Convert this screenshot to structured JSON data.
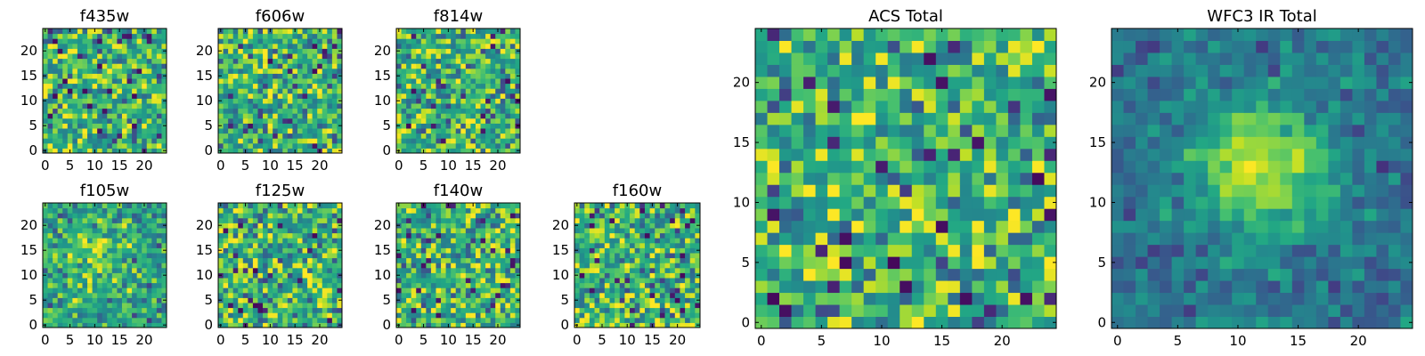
{
  "chart_data": [
    {
      "type": "heatmap",
      "title": "f435w",
      "xticks": [
        0,
        5,
        10,
        15,
        20
      ],
      "yticks": [
        0,
        5,
        10,
        15,
        20
      ],
      "grid_size": 25,
      "xlim": [
        -0.5,
        24.5
      ],
      "ylim": [
        -0.5,
        24.5
      ],
      "colormap": "viridis",
      "pattern": "noise",
      "values": []
    },
    {
      "type": "heatmap",
      "title": "f606w",
      "xticks": [
        0,
        5,
        10,
        15,
        20
      ],
      "yticks": [
        0,
        5,
        10,
        15,
        20
      ],
      "grid_size": 25,
      "xlim": [
        -0.5,
        24.5
      ],
      "ylim": [
        -0.5,
        24.5
      ],
      "colormap": "viridis",
      "pattern": "noise",
      "values": []
    },
    {
      "type": "heatmap",
      "title": "f814w",
      "xticks": [
        0,
        5,
        10,
        15,
        20
      ],
      "yticks": [
        0,
        5,
        10,
        15,
        20
      ],
      "grid_size": 25,
      "xlim": [
        -0.5,
        24.5
      ],
      "ylim": [
        -0.5,
        24.5
      ],
      "colormap": "viridis",
      "pattern": "noise",
      "values": []
    },
    {
      "type": "heatmap",
      "title": "f105w",
      "xticks": [
        0,
        5,
        10,
        15,
        20
      ],
      "yticks": [
        0,
        5,
        10,
        15,
        20
      ],
      "grid_size": 25,
      "xlim": [
        -0.5,
        24.5
      ],
      "ylim": [
        -0.5,
        24.5
      ],
      "colormap": "viridis",
      "pattern": "faint-source",
      "values": []
    },
    {
      "type": "heatmap",
      "title": "f125w",
      "xticks": [
        0,
        5,
        10,
        15,
        20
      ],
      "yticks": [
        0,
        5,
        10,
        15,
        20
      ],
      "grid_size": 25,
      "xlim": [
        -0.5,
        24.5
      ],
      "ylim": [
        -0.5,
        24.5
      ],
      "colormap": "viridis",
      "pattern": "noise",
      "values": []
    },
    {
      "type": "heatmap",
      "title": "f140w",
      "xticks": [
        0,
        5,
        10,
        15,
        20
      ],
      "yticks": [
        0,
        5,
        10,
        15,
        20
      ],
      "grid_size": 25,
      "xlim": [
        -0.5,
        24.5
      ],
      "ylim": [
        -0.5,
        24.5
      ],
      "colormap": "viridis",
      "pattern": "noise",
      "values": []
    },
    {
      "type": "heatmap",
      "title": "f160w",
      "xticks": [
        0,
        5,
        10,
        15,
        20
      ],
      "yticks": [
        0,
        5,
        10,
        15,
        20
      ],
      "grid_size": 25,
      "xlim": [
        -0.5,
        24.5
      ],
      "ylim": [
        -0.5,
        24.5
      ],
      "colormap": "viridis",
      "pattern": "noise",
      "values": []
    },
    {
      "type": "heatmap",
      "title": "ACS Total",
      "xticks": [
        0,
        5,
        10,
        15,
        20
      ],
      "yticks": [
        0,
        5,
        10,
        15,
        20
      ],
      "grid_size": 25,
      "xlim": [
        -0.5,
        24.5
      ],
      "ylim": [
        -0.5,
        24.5
      ],
      "colormap": "viridis",
      "pattern": "noise",
      "values": []
    },
    {
      "type": "heatmap",
      "title": "WFC3 IR Total",
      "xticks": [
        0,
        5,
        10,
        15,
        20
      ],
      "yticks": [
        0,
        5,
        10,
        15,
        20
      ],
      "grid_size": 25,
      "xlim": [
        -0.5,
        24.5
      ],
      "ylim": [
        -0.5,
        24.5
      ],
      "colormap": "viridis",
      "pattern": "central-source",
      "values": []
    }
  ]
}
